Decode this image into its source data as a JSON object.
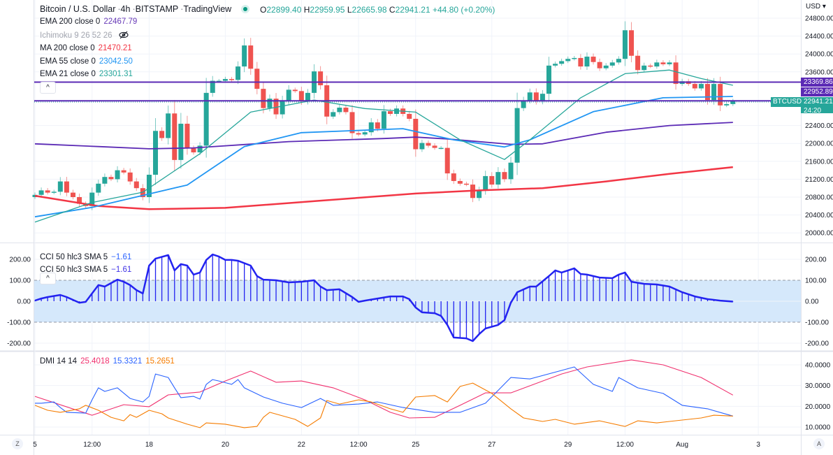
{
  "header": {
    "symbol_name": "Bitcoin / U.S. Dollar",
    "interval": "4h",
    "exchange": "BITSTAMP",
    "source": "TradingView",
    "separator": "·",
    "ohlc": {
      "o_label": "O",
      "o": "22899.40",
      "h_label": "H",
      "h": "22959.95",
      "l_label": "L",
      "l": "22665.98",
      "c_label": "C",
      "c": "22941.21",
      "change": "+44.80 (+0.20%)"
    },
    "status_icon": "market-open-dot-icon"
  },
  "indicators": [
    {
      "label": "EMA 200 close 0",
      "value": "22467.79",
      "color": "#673ab7"
    },
    {
      "label": "Ichimoku 9 26 52 26",
      "value": "",
      "color": "#a3a6af",
      "hidden_icon": "eye-crossed-icon"
    },
    {
      "label": "MA 200 close 0",
      "value": "21470.21",
      "color": "#f23645"
    },
    {
      "label": "EMA 55 close 0",
      "value": "23042.50",
      "color": "#2196f3"
    },
    {
      "label": "EMA 21 close 0",
      "value": "23301.31",
      "color": "#26a69a"
    }
  ],
  "collapse_icon": "chevron-up-icon",
  "price_axis": {
    "currency": "USD ▾",
    "ticks": [
      "24800.00",
      "24400.00",
      "24000.00",
      "23600.00",
      "22400.00",
      "22000.00",
      "21600.00",
      "21200.00",
      "20800.00",
      "20400.00",
      "20000.00"
    ],
    "tick_values": [
      24800,
      24400,
      24000,
      23600,
      22400,
      22000,
      21600,
      21200,
      20800,
      20400,
      20000
    ],
    "levels": [
      {
        "value": 23369.86,
        "label": "23369.86",
        "color": "#5b2ab5"
      },
      {
        "value": 22952.89,
        "label": "22952.89",
        "color": "#5b2ab5"
      }
    ],
    "last_price": {
      "label": "22941.21",
      "countdown": "24:20",
      "symbol": "BTCUSD",
      "color": "#26a69a"
    }
  },
  "cci_pane": {
    "legend": [
      {
        "label": "CCI 50 hlc3 SMA 5",
        "value": "−1.61",
        "color": "#2962ff"
      },
      {
        "label": "CCI 50 hlc3 SMA 5",
        "value": "−1.61",
        "color": "#3f33e6"
      }
    ],
    "ticks": [
      "200.00",
      "100.00",
      "0.00",
      "-100.00",
      "-200.00"
    ],
    "tick_values": [
      200,
      100,
      0,
      -100,
      -200
    ],
    "band": [
      100,
      -100
    ],
    "band_color": "#d5e8fb",
    "line_color": "#2323f0"
  },
  "dmi_pane": {
    "legend": {
      "label": "DMI 14 14",
      "values": [
        {
          "value": "25.4018",
          "color": "#f0306e"
        },
        {
          "value": "15.3321",
          "color": "#2962ff"
        },
        {
          "value": "15.2651",
          "color": "#f57c00"
        }
      ]
    },
    "ticks": [
      "40.0000",
      "30.0000",
      "20.0000",
      "10.0000"
    ],
    "tick_values": [
      40,
      30,
      20,
      10
    ]
  },
  "time_axis": {
    "labels": [
      "5",
      "12:00",
      "18",
      "20",
      "22",
      "12:00",
      "25",
      "27",
      "29",
      "12:00",
      "Aug",
      "3"
    ],
    "left_button": "Z",
    "right_button": "A"
  },
  "chart_data": {
    "type": "candlestick",
    "colors": {
      "up": "#26a69a",
      "down": "#ef5350"
    },
    "first_open": 20800,
    "closes": [
      20850,
      20950,
      20900,
      20920,
      21150,
      20900,
      20800,
      20650,
      20600,
      20900,
      21100,
      21250,
      21200,
      21400,
      21350,
      21150,
      21000,
      20800,
      21300,
      22280,
      22120,
      22670,
      21630,
      22440,
      21890,
      21800,
      21950,
      23130,
      23400,
      23400,
      23440,
      23420,
      23720,
      24190,
      23670,
      23220,
      22790,
      23000,
      22650,
      22950,
      23200,
      23170,
      22940,
      23130,
      23610,
      23300,
      22600,
      22700,
      22800,
      22700,
      22230,
      22200,
      22250,
      22470,
      22330,
      22720,
      22660,
      22780,
      22660,
      22550,
      21870,
      22010,
      21950,
      21900,
      21900,
      21330,
      21160,
      21100,
      21080,
      20780,
      20950,
      21270,
      21080,
      21360,
      21200,
      21570,
      22790,
      22960,
      23140,
      22940,
      23110,
      23740,
      23780,
      23840,
      23890,
      23910,
      23720,
      23940,
      23820,
      23680,
      23740,
      23810,
      23890,
      24530,
      23960,
      23640,
      23740,
      23720,
      23810,
      23770,
      23810,
      23330,
      23390,
      23330,
      23230,
      23330,
      22970,
      23330,
      22850,
      22880,
      22941.21
    ],
    "moving_averages": [
      {
        "name": "MA 200",
        "color": "#f23645",
        "width": 2.5,
        "points": [
          [
            0,
            20830
          ],
          [
            10,
            20600
          ],
          [
            18,
            20530
          ],
          [
            30,
            20560
          ],
          [
            45,
            20720
          ],
          [
            60,
            20880
          ],
          [
            70,
            20950
          ],
          [
            80,
            21000
          ],
          [
            90,
            21150
          ],
          [
            100,
            21320
          ],
          [
            110,
            21470
          ]
        ]
      },
      {
        "name": "EMA 200",
        "color": "#5b2ab5",
        "width": 1.8,
        "points": [
          [
            0,
            21990
          ],
          [
            10,
            21930
          ],
          [
            18,
            21880
          ],
          [
            25,
            21900
          ],
          [
            40,
            22040
          ],
          [
            55,
            22110
          ],
          [
            60,
            22140
          ],
          [
            65,
            22100
          ],
          [
            75,
            21980
          ],
          [
            80,
            21990
          ],
          [
            90,
            22250
          ],
          [
            100,
            22400
          ],
          [
            110,
            22470
          ]
        ]
      },
      {
        "name": "EMA 55",
        "color": "#2196f3",
        "width": 1.8,
        "points": [
          [
            0,
            20360
          ],
          [
            9,
            20570
          ],
          [
            24,
            21070
          ],
          [
            33,
            21930
          ],
          [
            42,
            22240
          ],
          [
            58,
            22330
          ],
          [
            66,
            22080
          ],
          [
            74,
            21920
          ],
          [
            78,
            22080
          ],
          [
            88,
            22710
          ],
          [
            99,
            23020
          ],
          [
            110,
            23050
          ]
        ]
      },
      {
        "name": "EMA 21",
        "color": "#26a69a",
        "width": 1.3,
        "points": [
          [
            0,
            20240
          ],
          [
            9,
            20680
          ],
          [
            17,
            20910
          ],
          [
            26,
            21770
          ],
          [
            34,
            22700
          ],
          [
            44,
            22970
          ],
          [
            52,
            22780
          ],
          [
            60,
            22700
          ],
          [
            67,
            22080
          ],
          [
            74,
            21640
          ],
          [
            78,
            22080
          ],
          [
            86,
            23020
          ],
          [
            93,
            23560
          ],
          [
            100,
            23640
          ],
          [
            105,
            23450
          ],
          [
            110,
            23300
          ]
        ]
      }
    ],
    "cci": [
      [
        0,
        3
      ],
      [
        1,
        13
      ],
      [
        2,
        20
      ],
      [
        4,
        30
      ],
      [
        5,
        20
      ],
      [
        7,
        -7
      ],
      [
        8,
        -3
      ],
      [
        9,
        37
      ],
      [
        10,
        77
      ],
      [
        11,
        70
      ],
      [
        13,
        103
      ],
      [
        14,
        93
      ],
      [
        15,
        77
      ],
      [
        16,
        53
      ],
      [
        17,
        37
      ],
      [
        18,
        170
      ],
      [
        19,
        203
      ],
      [
        21,
        220
      ],
      [
        22,
        147
      ],
      [
        23,
        177
      ],
      [
        24,
        170
      ],
      [
        25,
        127
      ],
      [
        26,
        137
      ],
      [
        27,
        197
      ],
      [
        28,
        223
      ],
      [
        29,
        213
      ],
      [
        30,
        197
      ],
      [
        31,
        197
      ],
      [
        32,
        193
      ],
      [
        34,
        170
      ],
      [
        35,
        120
      ],
      [
        36,
        103
      ],
      [
        38,
        100
      ],
      [
        40,
        90
      ],
      [
        42,
        93
      ],
      [
        44,
        100
      ],
      [
        45,
        70
      ],
      [
        46,
        53
      ],
      [
        48,
        57
      ],
      [
        50,
        20
      ],
      [
        51,
        -3
      ],
      [
        52,
        3
      ],
      [
        54,
        13
      ],
      [
        56,
        23
      ],
      [
        58,
        23
      ],
      [
        59,
        10
      ],
      [
        60,
        -30
      ],
      [
        61,
        -53
      ],
      [
        63,
        -57
      ],
      [
        64,
        -70
      ],
      [
        65,
        -113
      ],
      [
        66,
        -173
      ],
      [
        68,
        -177
      ],
      [
        69,
        -190
      ],
      [
        70,
        -157
      ],
      [
        71,
        -130
      ],
      [
        73,
        -113
      ],
      [
        74,
        -90
      ],
      [
        75,
        -7
      ],
      [
        76,
        43
      ],
      [
        78,
        70
      ],
      [
        79,
        70
      ],
      [
        81,
        120
      ],
      [
        82,
        147
      ],
      [
        83,
        137
      ],
      [
        85,
        157
      ],
      [
        86,
        130
      ],
      [
        87,
        127
      ],
      [
        89,
        113
      ],
      [
        91,
        110
      ],
      [
        92,
        127
      ],
      [
        93,
        137
      ],
      [
        94,
        93
      ],
      [
        96,
        83
      ],
      [
        98,
        80
      ],
      [
        100,
        70
      ],
      [
        102,
        43
      ],
      [
        103,
        33
      ],
      [
        104,
        23
      ],
      [
        106,
        10
      ],
      [
        108,
        3
      ],
      [
        110,
        -1.61
      ]
    ],
    "dmi": [
      {
        "name": "+DI",
        "color": "#f0306e",
        "points": [
          [
            0,
            24.8
          ],
          [
            9,
            15.7
          ],
          [
            14,
            20.8
          ],
          [
            18,
            19.8
          ],
          [
            21,
            25.5
          ],
          [
            26,
            26.9
          ],
          [
            30,
            32.2
          ],
          [
            34,
            37
          ],
          [
            38,
            31.6
          ],
          [
            42,
            32.2
          ],
          [
            47,
            28.9
          ],
          [
            52,
            23.1
          ],
          [
            56,
            17.1
          ],
          [
            59,
            14.4
          ],
          [
            63,
            14.7
          ],
          [
            67,
            20.5
          ],
          [
            71,
            26.5
          ],
          [
            75,
            26.5
          ],
          [
            78,
            29.9
          ],
          [
            83,
            35.6
          ],
          [
            87,
            39
          ],
          [
            94,
            42.4
          ],
          [
            99,
            40
          ],
          [
            105,
            33.9
          ],
          [
            110,
            25.4
          ]
        ]
      },
      {
        "name": "-DI",
        "color": "#2962ff",
        "points": [
          [
            0,
            21.5
          ],
          [
            1,
            21.5
          ],
          [
            3,
            22.1
          ],
          [
            4,
            19.4
          ],
          [
            5,
            17.1
          ],
          [
            8,
            16.7
          ],
          [
            9,
            23.1
          ],
          [
            10,
            28.9
          ],
          [
            11,
            27.2
          ],
          [
            13,
            28.9
          ],
          [
            15,
            23.8
          ],
          [
            17,
            22.1
          ],
          [
            18,
            24.8
          ],
          [
            19,
            35.6
          ],
          [
            21,
            33.9
          ],
          [
            22,
            28.9
          ],
          [
            23,
            24.2
          ],
          [
            25,
            24.8
          ],
          [
            26,
            23.5
          ],
          [
            27,
            30.6
          ],
          [
            28,
            32.9
          ],
          [
            29,
            32.2
          ],
          [
            31,
            30.6
          ],
          [
            32,
            32.9
          ],
          [
            33,
            28.9
          ],
          [
            36,
            24.5
          ],
          [
            39,
            21.5
          ],
          [
            42,
            19.4
          ],
          [
            45,
            23.8
          ],
          [
            47,
            20.5
          ],
          [
            51,
            21.1
          ],
          [
            54,
            22.1
          ],
          [
            58,
            19.4
          ],
          [
            63,
            17.1
          ],
          [
            67,
            17.1
          ],
          [
            71,
            21.5
          ],
          [
            75,
            33.9
          ],
          [
            78,
            33.2
          ],
          [
            83,
            37.3
          ],
          [
            85,
            39
          ],
          [
            88,
            30.6
          ],
          [
            91,
            27.2
          ],
          [
            92,
            33.9
          ],
          [
            95,
            28.9
          ],
          [
            99,
            26.2
          ],
          [
            102,
            20.5
          ],
          [
            106,
            18.8
          ],
          [
            110,
            15.3
          ]
        ]
      },
      {
        "name": "ADX",
        "color": "#f57c00",
        "points": [
          [
            0,
            20.5
          ],
          [
            2,
            18.1
          ],
          [
            4,
            17.1
          ],
          [
            7,
            18.8
          ],
          [
            8,
            20.5
          ],
          [
            10,
            18.1
          ],
          [
            12,
            14.7
          ],
          [
            14,
            13
          ],
          [
            15,
            16
          ],
          [
            16,
            14.7
          ],
          [
            18,
            18.1
          ],
          [
            20,
            16.4
          ],
          [
            21,
            14.4
          ],
          [
            24,
            11.4
          ],
          [
            26,
            9.7
          ],
          [
            27,
            12
          ],
          [
            30,
            11.4
          ],
          [
            33,
            9.7
          ],
          [
            35,
            10.3
          ],
          [
            36,
            14.7
          ],
          [
            37,
            17.1
          ],
          [
            41,
            13.7
          ],
          [
            43,
            10.3
          ],
          [
            45,
            14.4
          ],
          [
            46,
            22.8
          ],
          [
            48,
            21.1
          ],
          [
            51,
            23.1
          ],
          [
            53,
            22.1
          ],
          [
            56,
            18.8
          ],
          [
            58,
            17.1
          ],
          [
            60,
            24.5
          ],
          [
            63,
            25.2
          ],
          [
            65,
            22.1
          ],
          [
            67,
            29.6
          ],
          [
            69,
            31.2
          ],
          [
            72,
            26.2
          ],
          [
            75,
            18.8
          ],
          [
            77,
            14.4
          ],
          [
            80,
            12.7
          ],
          [
            82,
            13.7
          ],
          [
            85,
            11.4
          ],
          [
            89,
            13
          ],
          [
            93,
            10.3
          ],
          [
            95,
            13
          ],
          [
            98,
            12
          ],
          [
            100,
            12.7
          ],
          [
            105,
            14.4
          ],
          [
            107,
            15.7
          ],
          [
            110,
            15.3
          ]
        ]
      }
    ]
  }
}
